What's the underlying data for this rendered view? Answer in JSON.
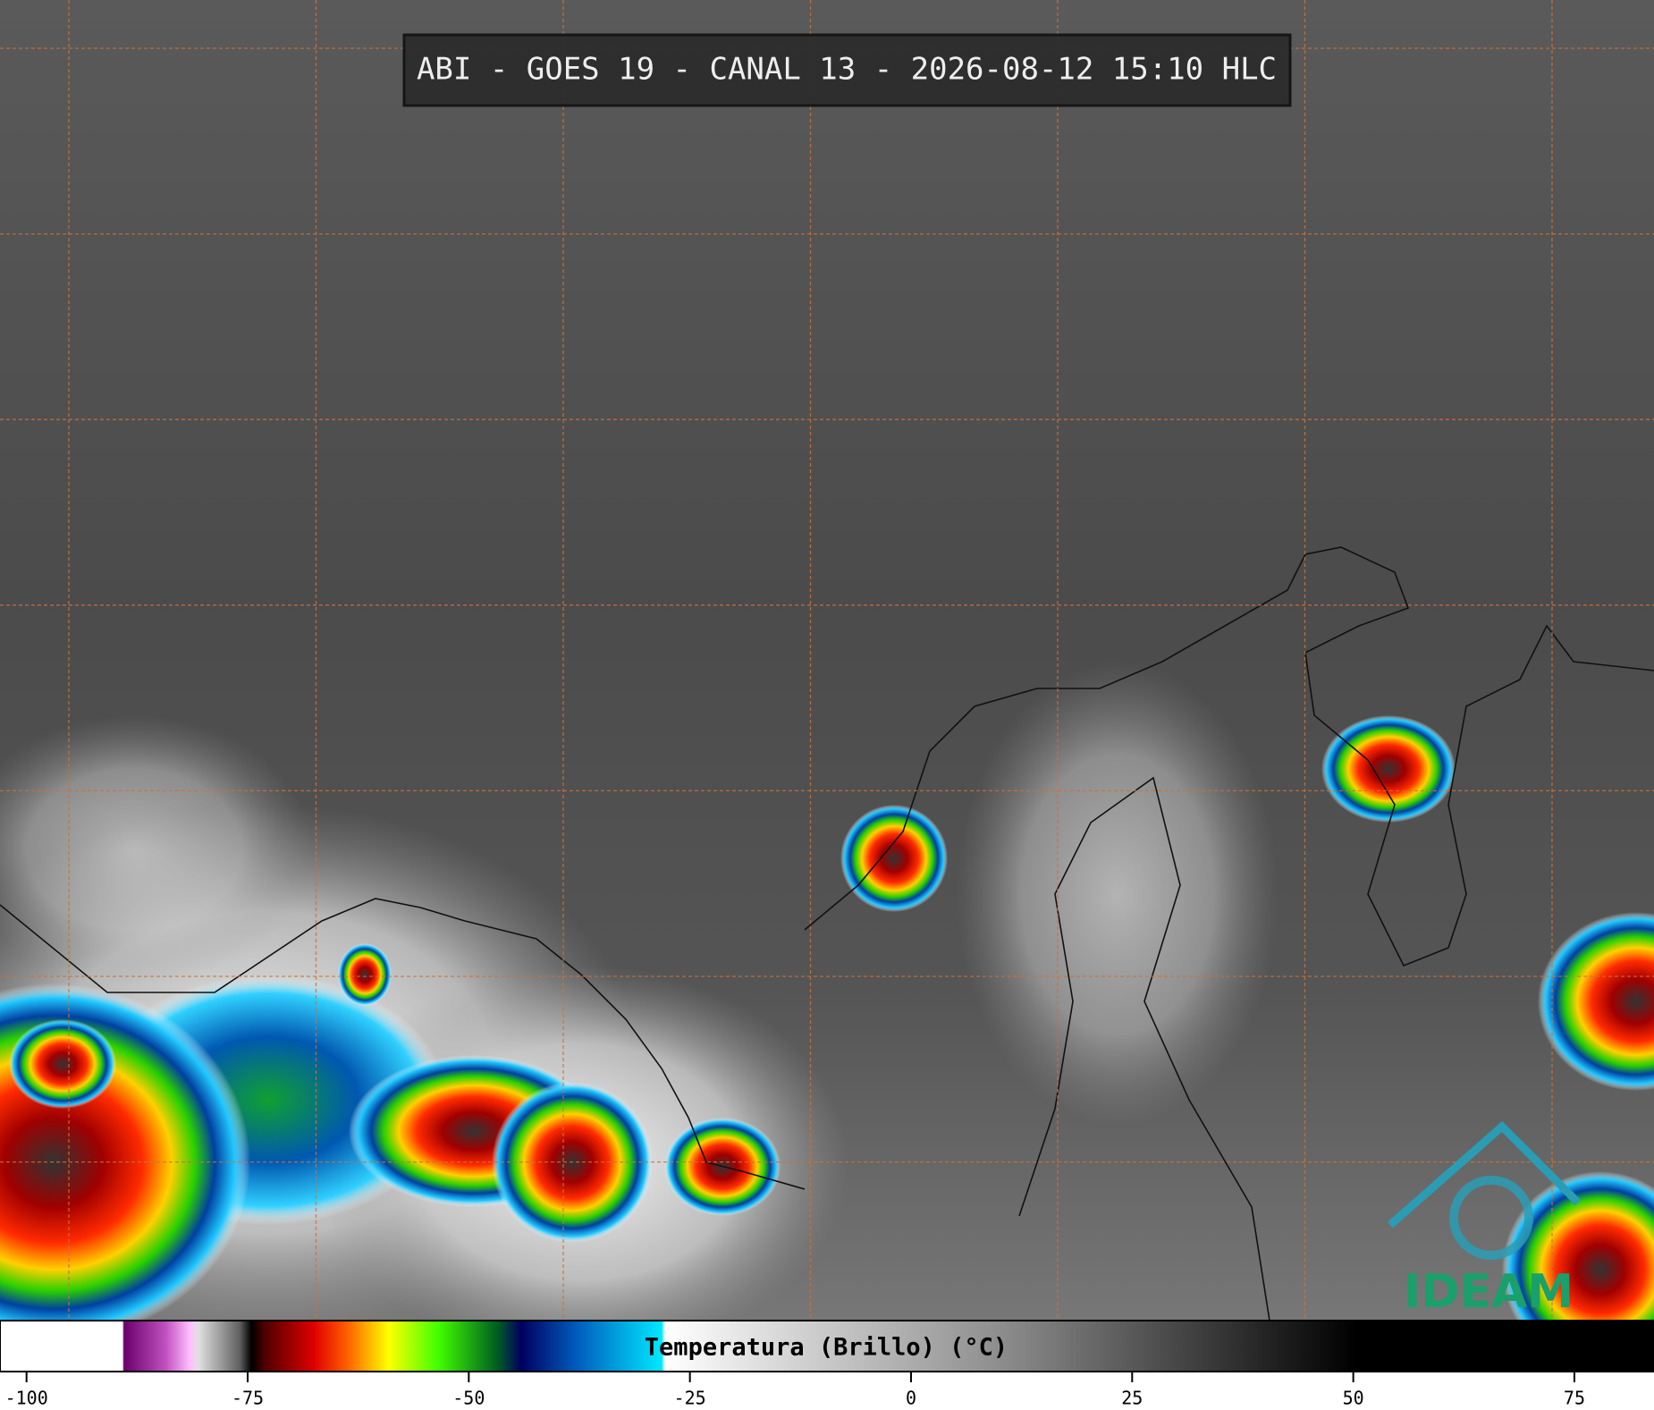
{
  "title": "ABI - GOES 19 - CANAL 13 - 2026-08-12 15:10 HLC",
  "colorbar": {
    "label": "Temperatura (Brillo) (°C)",
    "range": [
      -103,
      84
    ],
    "ticks": [
      -100,
      -75,
      -50,
      -25,
      0,
      25,
      50,
      75
    ]
  },
  "logo": "IDEAM"
}
